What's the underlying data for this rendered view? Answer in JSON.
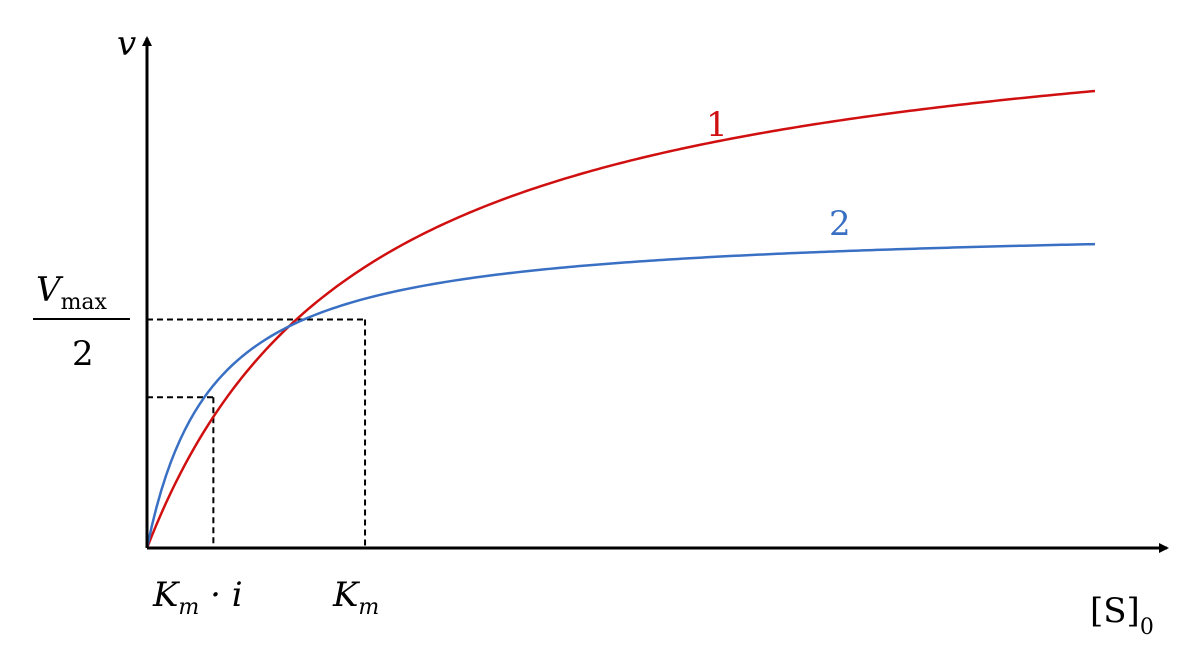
{
  "chart_data": {
    "type": "line",
    "title": "",
    "xlabel": "[S]",
    "xlabel_subscript": "0",
    "ylabel": "v",
    "xlim": [
      0,
      1
    ],
    "ylim": [
      0,
      1
    ],
    "grid": false,
    "legend": "none",
    "x_ticks": [
      {
        "label": "K",
        "subscript": "m",
        "suffix": " · i",
        "x": 0.07
      },
      {
        "label": "K",
        "subscript": "m",
        "suffix": "",
        "x": 0.23
      }
    ],
    "y_tick": {
      "numerator": "V",
      "numerator_subscript": "max",
      "denominator": "2",
      "y": 0.5
    },
    "guides": [
      {
        "x": 0.07,
        "y": 0.33
      },
      {
        "x": 0.23,
        "y": 0.5
      }
    ],
    "series": [
      {
        "name": "1",
        "color": "#d01010",
        "vmax": 1.0,
        "km": 0.23,
        "x": [
          0,
          0.05,
          0.1,
          0.15,
          0.2,
          0.23,
          0.3,
          0.4,
          0.5,
          0.6,
          0.7,
          0.8,
          0.9,
          1.0
        ],
        "values": [
          0,
          0.12,
          0.23,
          0.33,
          0.43,
          0.5,
          0.62,
          0.75,
          0.84,
          0.91,
          0.96,
          0.98,
          0.995,
          1.0
        ]
      },
      {
        "name": "2",
        "color": "#3a70c4",
        "vmax": 0.665,
        "km": 0.07,
        "x": [
          0,
          0.02,
          0.05,
          0.07,
          0.1,
          0.15,
          0.2,
          0.3,
          0.4,
          0.5,
          0.6,
          0.7,
          0.8,
          0.9,
          1.0
        ],
        "values": [
          0,
          0.17,
          0.28,
          0.33,
          0.39,
          0.45,
          0.5,
          0.56,
          0.6,
          0.62,
          0.64,
          0.65,
          0.66,
          0.663,
          0.665
        ]
      }
    ]
  }
}
